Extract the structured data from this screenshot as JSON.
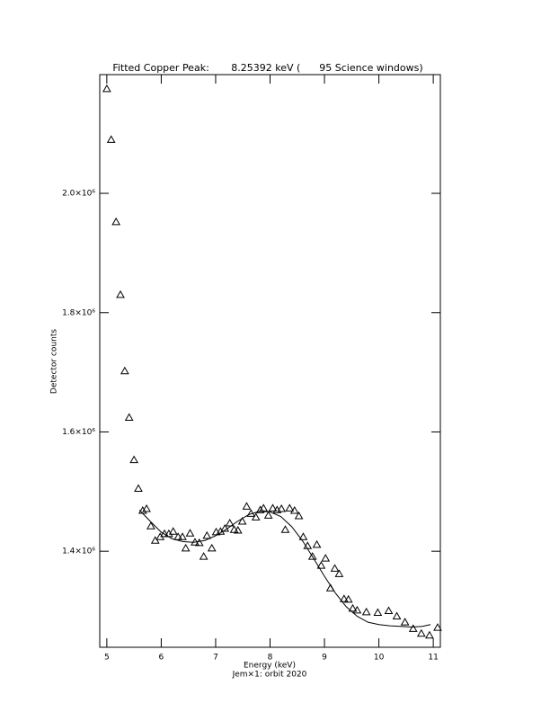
{
  "chart_data": {
    "type": "scatter",
    "title": "Fitted Copper Peak:       8.25392 keV (      95 Science windows)",
    "x_label": "Energy (keV)",
    "subtitle": "Jem×1: orbit 2020",
    "y_label": "Detector counts",
    "xlim": [
      4.87,
      11.13
    ],
    "ylim": [
      1239000,
      2199000
    ],
    "xticks": [
      5,
      6,
      7,
      8,
      9,
      10,
      11
    ],
    "yticks": [
      {
        "value": 1400000,
        "label": "1.4×10⁶"
      },
      {
        "value": 1600000,
        "label": "1.6×10⁶"
      },
      {
        "value": 1800000,
        "label": "1.8×10⁶"
      },
      {
        "value": 2000000,
        "label": "2.0×10⁶"
      }
    ],
    "color": "#000000",
    "series": [
      {
        "style": "triangle",
        "x": [
          5.0,
          5.08,
          5.17,
          5.25,
          5.33,
          5.41,
          5.5,
          5.58,
          5.66,
          5.73,
          5.81,
          5.89,
          5.98,
          6.06,
          6.14,
          6.22,
          6.31,
          6.39,
          6.45,
          6.53,
          6.62,
          6.7,
          6.78,
          6.84,
          6.93,
          7.01,
          7.09,
          7.17,
          7.26,
          7.34,
          7.41,
          7.49,
          7.57,
          7.65,
          7.74,
          7.82,
          7.88,
          7.97,
          8.05,
          8.13,
          8.21,
          8.28,
          8.36,
          8.45,
          8.53,
          8.61,
          8.69,
          8.78,
          8.86,
          8.94,
          9.02,
          9.11,
          9.19,
          9.27,
          9.36,
          9.44,
          9.52,
          9.6,
          9.77,
          9.98,
          10.18,
          10.33,
          10.48,
          10.63,
          10.78,
          10.93,
          11.08
        ],
        "values": [
          2175000,
          2090000,
          1952000,
          1830000,
          1702000,
          1624000,
          1553000,
          1505000,
          1468000,
          1471000,
          1442000,
          1418000,
          1424000,
          1429000,
          1429000,
          1433000,
          1424000,
          1424000,
          1405000,
          1430000,
          1415000,
          1414000,
          1391000,
          1426000,
          1405000,
          1432000,
          1433000,
          1438000,
          1447000,
          1436000,
          1435000,
          1450000,
          1475000,
          1463000,
          1457000,
          1469000,
          1472000,
          1460000,
          1472000,
          1469000,
          1471000,
          1436000,
          1472000,
          1468000,
          1459000,
          1424000,
          1409000,
          1391000,
          1411000,
          1376000,
          1388000,
          1338000,
          1371000,
          1362000,
          1320000,
          1319000,
          1304000,
          1301000,
          1298000,
          1297000,
          1300000,
          1291000,
          1281000,
          1270000,
          1262000,
          1259000,
          1272000
        ]
      },
      {
        "style": "line",
        "x": [
          5.6,
          5.8,
          6.0,
          6.2,
          6.4,
          6.6,
          6.8,
          7.0,
          7.2,
          7.4,
          7.6,
          7.8,
          8.0,
          8.2,
          8.4,
          8.6,
          8.8,
          9.0,
          9.2,
          9.4,
          9.6,
          9.8,
          10.0,
          10.2,
          10.4,
          10.6,
          10.8,
          10.95
        ],
        "values": [
          1469000,
          1450000,
          1432000,
          1421000,
          1416000,
          1415000,
          1418000,
          1426000,
          1437000,
          1450000,
          1461000,
          1467000,
          1466000,
          1458000,
          1441000,
          1417000,
          1388000,
          1358000,
          1330000,
          1307000,
          1291000,
          1281000,
          1277000,
          1275000,
          1274000,
          1273000,
          1274000,
          1277000
        ]
      }
    ]
  }
}
